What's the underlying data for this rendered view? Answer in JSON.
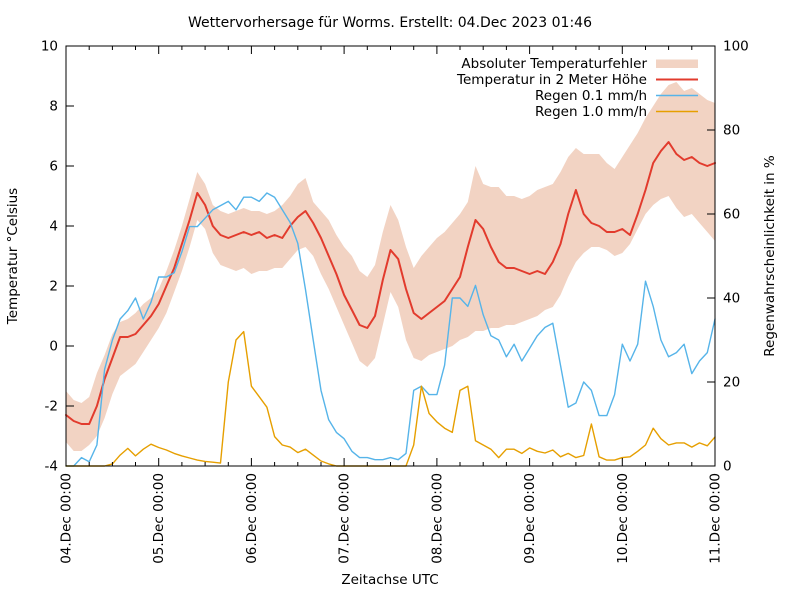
{
  "page": {
    "background": "#ffffff",
    "text_color": "#000000",
    "frame_color": "#000000"
  },
  "chart_data": {
    "type": "line",
    "title": "Wettervorhersage für Worms. Erstellt: 04.Dec 2023 01:46",
    "xlabel": "Zeitachse UTC",
    "ylabel_left": "Temperatur °Celsius",
    "ylabel_right": "Regenwahrscheinlichkeit in %",
    "grid": false,
    "legend_position": "top-right",
    "x_hours_start": 0,
    "x_hours_end": 168,
    "x_hours_step": 2,
    "x_minor_tick_hours": 6,
    "x_major_tick_hours": 24,
    "x_tick_labels": [
      "04.Dec 00:00",
      "05.Dec 00:00",
      "06.Dec 00:00",
      "07.Dec 00:00",
      "08.Dec 00:00",
      "09.Dec 00:00",
      "10.Dec 00:00",
      "11.Dec 00:00"
    ],
    "y_left_range": [
      -4,
      10
    ],
    "y_left_ticks": [
      10,
      8,
      6,
      4,
      2,
      0,
      -2,
      -4
    ],
    "y_right_range": [
      0,
      100
    ],
    "y_right_ticks": [
      100,
      80,
      60,
      40,
      20,
      0
    ],
    "series": [
      {
        "name": "Absoluter Temperaturfehler",
        "type": "band",
        "axis": "left",
        "color": "#f2d3c3",
        "upper": [
          -1.5,
          -1.8,
          -1.9,
          -1.7,
          -0.9,
          -0.3,
          0.4,
          0.8,
          0.9,
          1.1,
          1.4,
          1.6,
          1.9,
          2.5,
          3.2,
          4.0,
          4.9,
          5.8,
          5.4,
          4.7,
          4.5,
          4.4,
          4.5,
          4.6,
          4.5,
          4.5,
          4.4,
          4.5,
          4.7,
          5.0,
          5.4,
          5.6,
          4.8,
          4.5,
          4.2,
          3.7,
          3.3,
          3.0,
          2.5,
          2.3,
          2.7,
          3.8,
          4.7,
          4.2,
          3.3,
          2.6,
          3.0,
          3.3,
          3.6,
          3.8,
          4.1,
          4.4,
          4.8,
          6.0,
          5.4,
          5.3,
          5.3,
          5.0,
          5.0,
          4.9,
          5.0,
          5.2,
          5.3,
          5.4,
          5.8,
          6.3,
          6.6,
          6.4,
          6.4,
          6.4,
          6.1,
          5.9,
          6.3,
          6.7,
          7.1,
          7.6,
          8.0,
          8.4,
          8.7,
          8.8,
          8.5,
          8.6,
          8.4,
          8.2,
          8.1
        ],
        "lower": [
          -3.2,
          -3.5,
          -3.5,
          -3.3,
          -3.0,
          -2.4,
          -1.6,
          -1.0,
          -0.8,
          -0.6,
          -0.2,
          0.2,
          0.6,
          1.1,
          1.8,
          2.5,
          3.3,
          4.2,
          3.9,
          3.1,
          2.7,
          2.6,
          2.5,
          2.6,
          2.4,
          2.5,
          2.5,
          2.6,
          2.6,
          2.9,
          3.2,
          3.3,
          3.0,
          2.4,
          1.9,
          1.3,
          0.7,
          0.1,
          -0.5,
          -0.7,
          -0.4,
          0.7,
          1.8,
          1.3,
          0.2,
          -0.4,
          -0.5,
          -0.3,
          -0.2,
          -0.1,
          0.0,
          0.2,
          0.3,
          0.5,
          0.5,
          0.6,
          0.6,
          0.7,
          0.7,
          0.8,
          0.9,
          1.0,
          1.2,
          1.3,
          1.7,
          2.3,
          2.8,
          3.1,
          3.3,
          3.3,
          3.2,
          3.0,
          3.1,
          3.4,
          3.9,
          4.4,
          4.7,
          4.9,
          5.0,
          4.6,
          4.3,
          4.4,
          4.1,
          3.8,
          3.5
        ]
      },
      {
        "name": "Temperatur in 2 Meter Höhe",
        "type": "line",
        "axis": "left",
        "color": "#e23b2d",
        "width": 2,
        "values": [
          -2.3,
          -2.5,
          -2.6,
          -2.6,
          -2.0,
          -1.1,
          -0.4,
          0.3,
          0.3,
          0.4,
          0.7,
          1.0,
          1.4,
          2.0,
          2.6,
          3.4,
          4.2,
          5.1,
          4.7,
          4.0,
          3.7,
          3.6,
          3.7,
          3.8,
          3.7,
          3.8,
          3.6,
          3.7,
          3.6,
          4.0,
          4.3,
          4.5,
          4.1,
          3.6,
          3.0,
          2.4,
          1.7,
          1.2,
          0.7,
          0.6,
          1.0,
          2.2,
          3.2,
          2.9,
          1.9,
          1.1,
          0.9,
          1.1,
          1.3,
          1.5,
          1.9,
          2.3,
          3.3,
          4.2,
          3.9,
          3.3,
          2.8,
          2.6,
          2.6,
          2.5,
          2.4,
          2.5,
          2.4,
          2.8,
          3.4,
          4.4,
          5.2,
          4.4,
          4.1,
          4.0,
          3.8,
          3.8,
          3.9,
          3.7,
          4.4,
          5.2,
          6.1,
          6.5,
          6.8,
          6.4,
          6.2,
          6.3,
          6.1,
          6.0,
          6.1
        ]
      },
      {
        "name": "Regen 0.1 mm/h",
        "type": "line",
        "axis": "right",
        "color": "#56b4e9",
        "width": 1.4,
        "values": [
          0,
          0,
          2,
          1,
          5,
          23,
          30,
          35,
          37,
          40,
          35,
          39,
          45,
          45,
          46,
          51,
          57,
          57,
          59,
          61,
          62,
          63,
          61,
          64,
          64,
          63,
          65,
          64,
          61,
          58,
          53,
          42,
          30,
          18,
          11,
          8,
          6.5,
          3.5,
          2,
          2,
          1.5,
          1.5,
          2,
          1.5,
          3,
          18,
          19,
          17,
          17,
          24,
          40,
          40,
          38,
          43,
          36,
          31,
          30,
          26,
          29,
          25,
          28,
          31,
          33,
          34,
          24,
          14,
          15,
          20,
          18,
          12,
          12,
          17,
          29,
          25,
          29,
          44,
          38,
          30,
          26,
          27,
          29,
          22,
          25,
          27,
          35
        ]
      },
      {
        "name": "Regen 1.0 mm/h",
        "type": "line",
        "axis": "right",
        "color": "#e69f00",
        "width": 1.4,
        "values": [
          0,
          0,
          0,
          0,
          0,
          0,
          0.5,
          2.6,
          4.2,
          2.4,
          4.0,
          5.2,
          4.4,
          3.8,
          3.0,
          2.4,
          1.9,
          1.4,
          1.1,
          0.9,
          0.7,
          20,
          30,
          32,
          19,
          16.5,
          14,
          7,
          5,
          4.5,
          3.2,
          4,
          2.6,
          1.2,
          0.5,
          0,
          0,
          0,
          0,
          0,
          0,
          0,
          0,
          0,
          0,
          5,
          19,
          12.5,
          10.5,
          9,
          8,
          18,
          19,
          6,
          5,
          4,
          2,
          4,
          4,
          3,
          4.3,
          3.5,
          3.1,
          3.8,
          2.2,
          3,
          2,
          2.5,
          10,
          2.2,
          1.4,
          1.4,
          2,
          2.2,
          3.5,
          5,
          9,
          6.5,
          5,
          5.5,
          5.5,
          4.5,
          5.5,
          4.8,
          6.9
        ]
      }
    ]
  }
}
